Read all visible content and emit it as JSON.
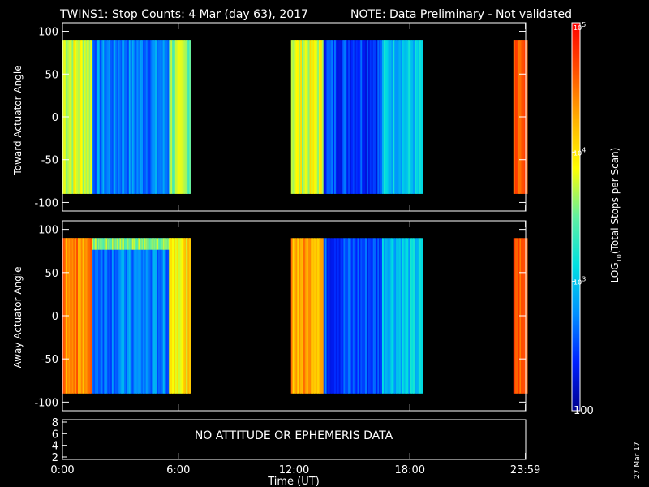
{
  "header": {
    "title": "TWINS1: Stop Counts:  4 Mar (day  63), 2017",
    "note": "NOTE: Data Preliminary - Not validated",
    "note_color": "#ff2020"
  },
  "footer": {
    "date_stamp": "27 Mar 17"
  },
  "colors": {
    "background": "#000000",
    "axes": "#ffffff",
    "colormap": [
      "#00008c",
      "#0020ff",
      "#0090ff",
      "#00e0e0",
      "#60f0a0",
      "#ffff00",
      "#ffb000",
      "#ff5000",
      "#ff0000"
    ]
  },
  "chart_data": [
    {
      "type": "heatmap",
      "panel": "top",
      "ylabel": "Toward Actuator Angle",
      "xlabel": "",
      "ylim": [
        -110,
        110
      ],
      "yticks": [
        -100,
        -50,
        0,
        50,
        100
      ],
      "xlim": [
        0,
        24
      ],
      "data_extent_y": [
        -90,
        90
      ],
      "data_intervals_ut_hours": [
        [
          0,
          6.6
        ],
        [
          11.8,
          18.6
        ],
        [
          23.3,
          24
        ]
      ],
      "colorbar": {
        "label": "LOG10(Total Stops per Scan)",
        "scale": "log",
        "range": [
          100,
          100000
        ],
        "tick_labels": [
          "100",
          "10^3",
          "10^4",
          "10^5"
        ]
      },
      "approx_log10_levels": [
        {
          "t_range": [
            0,
            1.5
          ],
          "level": 3.8
        },
        {
          "t_range": [
            1.5,
            5.5
          ],
          "level": 2.7
        },
        {
          "t_range": [
            5.5,
            6.6
          ],
          "level": 3.6
        },
        {
          "t_range": [
            11.8,
            13.5
          ],
          "level": 3.8
        },
        {
          "t_range": [
            13.5,
            16.5
          ],
          "level": 2.5
        },
        {
          "t_range": [
            16.5,
            18.6
          ],
          "level": 3.0
        },
        {
          "t_range": [
            23.3,
            24
          ],
          "level": 4.5
        }
      ]
    },
    {
      "type": "heatmap",
      "panel": "middle",
      "ylabel": "Away Actuator Angle",
      "xlabel": "",
      "ylim": [
        -110,
        110
      ],
      "yticks": [
        -100,
        -50,
        0,
        50,
        100
      ],
      "xlim": [
        0,
        24
      ],
      "data_extent_y": [
        -90,
        90
      ],
      "data_intervals_ut_hours": [
        [
          0,
          6.6
        ],
        [
          11.8,
          18.6
        ],
        [
          23.3,
          24
        ]
      ],
      "approx_log10_levels": [
        {
          "t_range": [
            0,
            1.5
          ],
          "level": 4.4
        },
        {
          "t_range": [
            1.5,
            5.5
          ],
          "level": 2.7
        },
        {
          "t_range": [
            5.5,
            6.6
          ],
          "level": 4.0
        },
        {
          "t_range": [
            11.8,
            13.5
          ],
          "level": 4.3
        },
        {
          "t_range": [
            13.5,
            16.5
          ],
          "level": 2.5
        },
        {
          "t_range": [
            16.5,
            18.6
          ],
          "level": 3.0
        },
        {
          "t_range": [
            23.3,
            24
          ],
          "level": 4.6
        }
      ],
      "high_band": {
        "y_range": [
          60,
          90
        ],
        "level": 3.6
      }
    },
    {
      "type": "line",
      "panel": "bottom",
      "ylim": [
        2,
        8
      ],
      "yticks": [
        2,
        4,
        6,
        8
      ],
      "xlim": [
        0,
        24
      ],
      "xlabel": "Time (UT)",
      "xticks": [
        "0:00",
        "6:00",
        "12:00",
        "18:00",
        "23:59"
      ],
      "xtick_hours": [
        0,
        6,
        12,
        18,
        23.983
      ],
      "annotation": "NO ATTITUDE OR EPHEMERIS DATA",
      "series": []
    }
  ]
}
